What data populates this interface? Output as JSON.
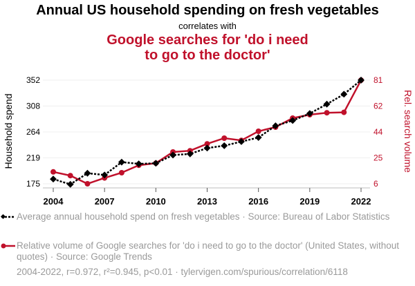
{
  "title": "Annual US household spending on fresh vegetables",
  "subtitle": "correlates with",
  "title2": "Google searches for 'do i need to go to the doctor'",
  "legend": [
    "Average annual household spend on fresh vegetables · Source: Bureau of Labor Statistics",
    "Relative volume of Google searches for 'do i need to go to the doctor' (United States, without quotes) · Source: Google Trends"
  ],
  "footer": "2004-2022, r=0.972, r²=0.945, p<0.01 · tylervigen.com/spurious/correlation/6118",
  "colors": {
    "spend": "#000000",
    "search": "#c0112b"
  },
  "chart_data": {
    "type": "line",
    "x": [
      2004,
      2005,
      2006,
      2007,
      2008,
      2009,
      2010,
      2011,
      2012,
      2013,
      2014,
      2015,
      2016,
      2017,
      2018,
      2019,
      2020,
      2021,
      2022
    ],
    "xticks": [
      "2004",
      "2007",
      "2010",
      "2013",
      "2016",
      "2019",
      "2022"
    ],
    "ylabel": "Household spend",
    "y2label": "Rel. search volume",
    "yticks": [
      "175",
      "219",
      "264",
      "308",
      "352"
    ],
    "y2ticks": [
      "6",
      "25",
      "44",
      "62",
      "81"
    ],
    "ylim": [
      175,
      352
    ],
    "y2lim": [
      6,
      81
    ],
    "series": [
      {
        "name": "Household spend",
        "axis": "left",
        "values": [
          183,
          174,
          193,
          190,
          212,
          209,
          210,
          224,
          226,
          236,
          240,
          247,
          254,
          274,
          283,
          295,
          311,
          328,
          352
        ]
      },
      {
        "name": "Rel. search volume",
        "axis": "right",
        "values": [
          14.6,
          11.9,
          6,
          10.2,
          14,
          19.4,
          20.9,
          29,
          29.9,
          34.9,
          39,
          37.4,
          44,
          47,
          53.5,
          56,
          57.4,
          57.7,
          81
        ]
      }
    ]
  }
}
